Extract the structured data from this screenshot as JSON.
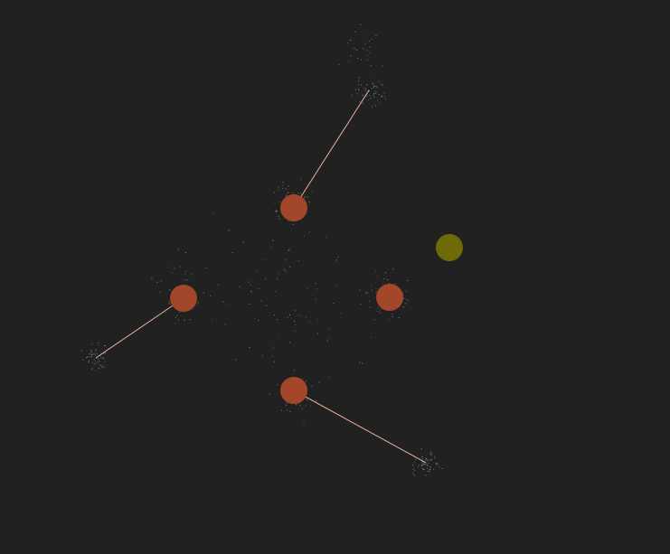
{
  "colors": {
    "background": "#212121",
    "node": "#a2472a",
    "highlight_node": "#6f6a08",
    "link": "#e8b49c",
    "particle": "#8fa3a8",
    "particle_accent": "#5fb0a8"
  },
  "scene": {
    "title": "",
    "nodes": [
      {
        "id": "node-top",
        "kind": "primary"
      },
      {
        "id": "node-left",
        "kind": "primary"
      },
      {
        "id": "node-middle-right",
        "kind": "primary"
      },
      {
        "id": "node-bottom",
        "kind": "primary"
      },
      {
        "id": "node-highlight",
        "kind": "highlight"
      }
    ],
    "links": [
      {
        "from": "node-top",
        "to_cluster": "cluster-top"
      },
      {
        "from": "node-left",
        "to_cluster": "cluster-left"
      },
      {
        "from": "node-bottom",
        "to_cluster": "cluster-bottom"
      }
    ]
  }
}
